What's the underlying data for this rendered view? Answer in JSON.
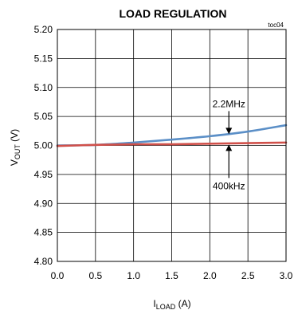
{
  "chart_data": {
    "type": "line",
    "title": "LOAD REGULATION",
    "tag": "toc04",
    "xlabel": {
      "main": "I",
      "sub": "LOAD",
      "unit": " (A)"
    },
    "ylabel": {
      "main": "V",
      "sub": "OUT",
      "unit": " (V)"
    },
    "xlim": [
      0,
      3
    ],
    "ylim": [
      4.8,
      5.2
    ],
    "xticks": [
      0,
      0.5,
      1,
      1.5,
      2,
      2.5,
      3
    ],
    "xtick_labels": [
      "0.0",
      "0.5",
      "1.0",
      "1.5",
      "2.0",
      "2.5",
      "3.0"
    ],
    "yticks": [
      4.8,
      4.85,
      4.9,
      4.95,
      5.0,
      5.05,
      5.1,
      5.15,
      5.2
    ],
    "ytick_labels": [
      "4.80",
      "4.85",
      "4.90",
      "4.95",
      "5.00",
      "5.05",
      "5.10",
      "5.15",
      "5.20"
    ],
    "grid": true,
    "series": [
      {
        "name": "2.2MHz",
        "color": "#5b8fc7",
        "x": [
          0,
          0.5,
          1.0,
          1.5,
          2.0,
          2.5,
          3.0
        ],
        "y": [
          5.0,
          5.001,
          5.005,
          5.01,
          5.016,
          5.024,
          5.035
        ]
      },
      {
        "name": "400kHz",
        "color": "#d0504a",
        "x": [
          0,
          0.5,
          1.0,
          1.5,
          2.0,
          2.5,
          3.0
        ],
        "y": [
          4.999,
          5.001,
          5.002,
          5.002,
          5.003,
          5.004,
          5.005
        ]
      }
    ],
    "annotations": [
      {
        "series": 0,
        "label": "2.2MHz",
        "x": 2.25,
        "arrow_to_y": 5.018,
        "side": "above"
      },
      {
        "series": 1,
        "label": "400kHz",
        "x": 2.25,
        "arrow_to_y": 5.003,
        "side": "below"
      }
    ]
  }
}
